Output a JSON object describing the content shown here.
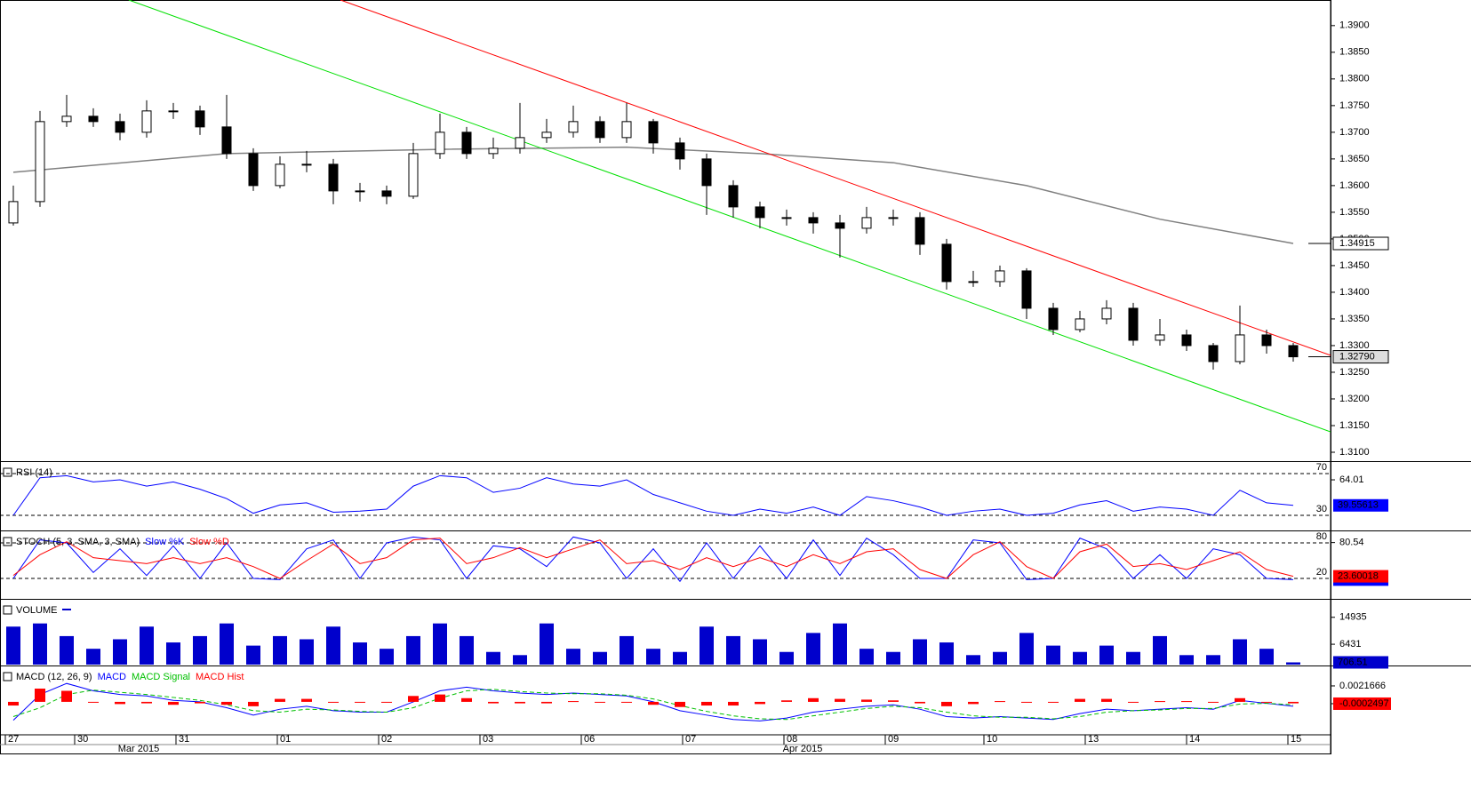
{
  "chart_data": [
    {
      "type": "candlestick",
      "xlim": [
        -0.5,
        49.4
      ],
      "xticks": [
        {
          "value": -0.3,
          "label": "27"
        },
        {
          "value": 2.3,
          "label": "30"
        },
        {
          "value": 6.1,
          "label": "31"
        },
        {
          "value": 9.9,
          "label": "01"
        },
        {
          "value": 13.7,
          "label": "02"
        },
        {
          "value": 17.5,
          "label": "03"
        },
        {
          "value": 21.3,
          "label": "06"
        },
        {
          "value": 25.1,
          "label": "07"
        },
        {
          "value": 28.9,
          "label": "08"
        },
        {
          "value": 32.7,
          "label": "09"
        },
        {
          "value": 36.4,
          "label": "10"
        },
        {
          "value": 40.2,
          "label": "13"
        },
        {
          "value": 44.0,
          "label": "14"
        },
        {
          "value": 47.8,
          "label": "15"
        }
      ],
      "month_ticks": [
        {
          "value": 4.7,
          "label": "Mar 2015"
        },
        {
          "value": 29.6,
          "label": "Apr 2015"
        }
      ],
      "ylim": [
        1.3085,
        1.3948
      ],
      "yticks": [
        {
          "value": 1.31,
          "label": "1.3100"
        },
        {
          "value": 1.315,
          "label": "1.3150"
        },
        {
          "value": 1.32,
          "label": "1.3200"
        },
        {
          "value": 1.325,
          "label": "1.3250"
        },
        {
          "value": 1.33,
          "label": "1.3300"
        },
        {
          "value": 1.335,
          "label": "1.3350"
        },
        {
          "value": 1.34,
          "label": "1.3400"
        },
        {
          "value": 1.345,
          "label": "1.3450"
        },
        {
          "value": 1.35,
          "label": "1.3500"
        },
        {
          "value": 1.355,
          "label": "1.3550"
        },
        {
          "value": 1.36,
          "label": "1.3600"
        },
        {
          "value": 1.365,
          "label": "1.3650"
        },
        {
          "value": 1.37,
          "label": "1.3700"
        },
        {
          "value": 1.375,
          "label": "1.3750"
        },
        {
          "value": 1.38,
          "label": "1.3800"
        },
        {
          "value": 1.385,
          "label": "1.3850"
        },
        {
          "value": 1.39,
          "label": "1.3900"
        }
      ],
      "open": [
        1.353,
        1.357,
        1.372,
        1.373,
        1.372,
        1.37,
        1.374,
        1.374,
        1.371,
        1.366,
        1.36,
        1.364,
        1.364,
        1.359,
        1.359,
        1.358,
        1.366,
        1.37,
        1.366,
        1.367,
        1.369,
        1.37,
        1.372,
        1.369,
        1.372,
        1.368,
        1.365,
        1.36,
        1.356,
        1.354,
        1.354,
        1.353,
        1.352,
        1.354,
        1.354,
        1.349,
        1.342,
        1.342,
        1.344,
        1.337,
        1.333,
        1.335,
        1.337,
        1.331,
        1.332,
        1.33,
        1.327,
        1.332,
        1.33
      ],
      "high": [
        1.36,
        1.374,
        1.377,
        1.3745,
        1.3735,
        1.376,
        1.3755,
        1.375,
        1.377,
        1.367,
        1.3655,
        1.3665,
        1.365,
        1.3605,
        1.36,
        1.368,
        1.3735,
        1.371,
        1.369,
        1.3755,
        1.3725,
        1.375,
        1.373,
        1.3755,
        1.3725,
        1.369,
        1.366,
        1.361,
        1.357,
        1.3555,
        1.355,
        1.3545,
        1.356,
        1.3555,
        1.355,
        1.35,
        1.344,
        1.345,
        1.3445,
        1.338,
        1.3365,
        1.3385,
        1.338,
        1.335,
        1.333,
        1.3305,
        1.3375,
        1.333,
        1.3305
      ],
      "low": [
        1.3525,
        1.356,
        1.371,
        1.371,
        1.3685,
        1.369,
        1.3725,
        1.3695,
        1.365,
        1.359,
        1.3595,
        1.3625,
        1.3565,
        1.357,
        1.3565,
        1.3575,
        1.365,
        1.365,
        1.365,
        1.366,
        1.368,
        1.369,
        1.368,
        1.368,
        1.366,
        1.363,
        1.3545,
        1.354,
        1.352,
        1.3525,
        1.351,
        1.3465,
        1.351,
        1.3525,
        1.347,
        1.3405,
        1.341,
        1.341,
        1.335,
        1.332,
        1.3325,
        1.334,
        1.33,
        1.33,
        1.329,
        1.3255,
        1.3265,
        1.3285,
        1.327
      ],
      "close": [
        1.357,
        1.372,
        1.373,
        1.372,
        1.37,
        1.374,
        1.374,
        1.371,
        1.366,
        1.36,
        1.364,
        1.364,
        1.359,
        1.359,
        1.358,
        1.366,
        1.37,
        1.366,
        1.367,
        1.369,
        1.37,
        1.372,
        1.369,
        1.372,
        1.368,
        1.365,
        1.36,
        1.356,
        1.354,
        1.354,
        1.353,
        1.352,
        1.354,
        1.354,
        1.349,
        1.342,
        1.342,
        1.344,
        1.337,
        1.333,
        1.335,
        1.337,
        1.331,
        1.332,
        1.33,
        1.327,
        1.332,
        1.33,
        1.3279
      ],
      "overlays": [
        {
          "color": "#808080",
          "x": [
            0,
            8,
            16,
            23,
            28,
            33,
            38,
            43,
            48
          ],
          "values": [
            1.3625,
            1.366,
            1.3668,
            1.3672,
            1.366,
            1.3643,
            1.36,
            1.3537,
            1.34915
          ]
        },
        {
          "color": "#ff0000",
          "x": [
            12.27,
            49.4
          ],
          "values": [
            1.3948,
            1.32817
          ]
        },
        {
          "color": "#00e000",
          "x": [
            4.33,
            49.4
          ],
          "values": [
            1.3948,
            1.31383
          ]
        }
      ],
      "price_boxes": [
        {
          "value": 1.34915,
          "label": "1.34915"
        },
        {
          "value": 1.3279,
          "label": "1.32790"
        }
      ]
    },
    {
      "type": "line",
      "title": "RSI (14)",
      "ylim": [
        16.4,
        80.2
      ],
      "yticks": [
        64.01
      ],
      "levels": [
        30,
        70
      ],
      "series": [
        {
          "color": "#0000ff",
          "values": [
            30,
            66,
            68,
            62,
            64,
            58,
            62,
            55,
            46,
            32,
            40,
            42,
            33,
            34,
            36,
            58,
            68,
            66,
            52,
            56,
            66,
            60,
            58,
            64,
            50,
            42,
            34,
            30,
            36,
            32,
            38,
            30,
            48,
            44,
            38,
            30,
            34,
            36,
            30,
            32,
            40,
            44,
            34,
            38,
            36,
            30,
            54,
            42,
            39.55613
          ]
        }
      ]
    },
    {
      "type": "line",
      "title": "STOCH (5, 3, SMA, 3, SMA)",
      "ylim": [
        -13,
        98
      ],
      "yticks": [
        80.54
      ],
      "levels": [
        20,
        80
      ],
      "series": [
        {
          "name": "Slow %K",
          "color": "#0000ff",
          "values": [
            20,
            85,
            80,
            30,
            70,
            25,
            75,
            20,
            80,
            20,
            18,
            70,
            85,
            20,
            80,
            90,
            85,
            20,
            75,
            70,
            40,
            90,
            80,
            20,
            70,
            15,
            80,
            20,
            75,
            20,
            85,
            25,
            88,
            60,
            20,
            20,
            85,
            80,
            18,
            20,
            88,
            70,
            20,
            60,
            20,
            70,
            60,
            20,
            18
          ]
        },
        {
          "name": "Slow %D",
          "color": "#ff0000",
          "values": [
            25,
            60,
            82,
            55,
            50,
            45,
            55,
            45,
            55,
            40,
            20,
            50,
            78,
            45,
            55,
            85,
            88,
            45,
            55,
            72,
            55,
            70,
            85,
            45,
            50,
            35,
            55,
            40,
            55,
            40,
            60,
            45,
            65,
            70,
            35,
            20,
            60,
            82,
            40,
            20,
            65,
            78,
            40,
            45,
            35,
            50,
            65,
            35,
            23.60018
          ]
        }
      ]
    },
    {
      "type": "bar",
      "title": "VOLUME",
      "ylim": [
        0,
        20200
      ],
      "yticks": [
        6431,
        14935
      ],
      "series": [
        {
          "color": "#0000cc",
          "values": [
            12000,
            13000,
            9000,
            5000,
            8000,
            12000,
            7000,
            9000,
            13000,
            6000,
            9000,
            8000,
            12000,
            7000,
            5000,
            9000,
            13000,
            9000,
            4000,
            3000,
            13000,
            5000,
            4000,
            9000,
            5000,
            4000,
            12000,
            9000,
            8000,
            4000,
            10000,
            13000,
            5000,
            4000,
            8000,
            7000,
            3000,
            4000,
            10000,
            6000,
            4000,
            6000,
            4000,
            9000,
            3000,
            3000,
            8000,
            5000,
            706.51
          ]
        }
      ]
    },
    {
      "type": "combo",
      "title": "MACD (12, 26, 9)",
      "ylim": [
        -0.00436,
        0.0047
      ],
      "yticks": [
        0.0021666,
        -0.0002497
      ],
      "series": [
        {
          "name": "MACD",
          "color": "#0000ff",
          "style": "line",
          "values": [
            -0.0025,
            0.001,
            0.0025,
            0.0015,
            0.001,
            0.0008,
            0.0002,
            0.0,
            -0.0008,
            -0.0018,
            -0.001,
            -0.0006,
            -0.0012,
            -0.0014,
            -0.0014,
            0.0,
            0.0015,
            0.002,
            0.0015,
            0.0012,
            0.001,
            0.0012,
            0.001,
            0.0008,
            0.0,
            -0.0012,
            -0.0018,
            -0.0024,
            -0.0026,
            -0.0022,
            -0.0014,
            -0.001,
            -0.0006,
            -0.0004,
            -0.001,
            -0.002,
            -0.0022,
            -0.002,
            -0.0022,
            -0.0024,
            -0.0016,
            -0.001,
            -0.0012,
            -0.001,
            -0.0008,
            -0.001,
            0.0002,
            -0.0002,
            -0.0006
          ]
        },
        {
          "name": "MACD Signal",
          "color": "#00c000",
          "style": "dashed",
          "values": [
            -0.002,
            -0.0008,
            0.001,
            0.0016,
            0.0013,
            0.001,
            0.0006,
            0.0002,
            -0.0004,
            -0.0012,
            -0.0014,
            -0.001,
            -0.0011,
            -0.0013,
            -0.0014,
            -0.0008,
            0.0005,
            0.0015,
            0.0017,
            0.0014,
            0.0012,
            0.0011,
            0.0011,
            0.0009,
            0.0004,
            -0.0005,
            -0.0013,
            -0.0019,
            -0.0023,
            -0.0024,
            -0.0019,
            -0.0014,
            -0.0009,
            -0.0006,
            -0.0008,
            -0.0014,
            -0.0019,
            -0.0021,
            -0.0021,
            -0.0023,
            -0.002,
            -0.0014,
            -0.0012,
            -0.0011,
            -0.0009,
            -0.0009,
            -0.0003,
            -0.0002,
            -0.0004
          ]
        },
        {
          "name": "MACD Hist",
          "color": "#ff0000",
          "style": "bar",
          "values": [
            -0.0005,
            0.0018,
            0.0015,
            -0.0001,
            -0.0003,
            -0.0002,
            -0.0004,
            -0.0002,
            -0.0004,
            -0.0006,
            0.0004,
            0.0004,
            -0.0001,
            -0.0001,
            0.0,
            0.0008,
            0.001,
            0.0005,
            -0.0002,
            -0.0002,
            -0.0002,
            0.0001,
            -0.0001,
            -0.0001,
            -0.0004,
            -0.0007,
            -0.0005,
            -0.0005,
            -0.0003,
            0.0002,
            0.0005,
            0.0004,
            0.0003,
            0.0002,
            -0.0002,
            -0.0006,
            -0.0003,
            0.0001,
            -0.0001,
            -0.0001,
            0.0004,
            0.0004,
            0.0,
            0.0001,
            0.0001,
            -0.0001,
            0.0005,
            0.0,
            -0.0002
          ]
        }
      ]
    }
  ]
}
